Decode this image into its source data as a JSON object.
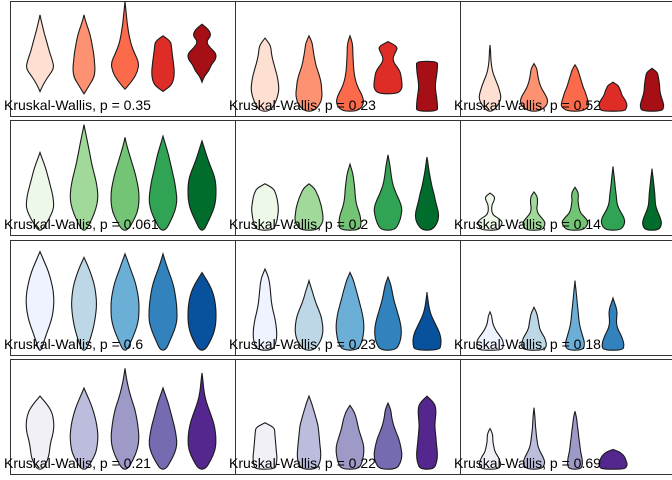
{
  "chart_data": [
    {
      "type": "violin",
      "row": 0,
      "col": 0,
      "stat_label": "Kruskal-Wallis, p = 0.35",
      "colors": [
        "#FEE0D2",
        "#FC9272",
        "#FB6A4A",
        "#DE2D26",
        "#A50F15"
      ],
      "groups": [
        {
          "ymin": 0.22,
          "ymax": 0.88,
          "w": [
            0.0,
            0.25,
            0.6,
            1.0,
            0.9,
            0.7,
            0.55,
            0.4,
            0.25,
            0.12,
            0.0
          ]
        },
        {
          "ymin": 0.2,
          "ymax": 0.88,
          "w": [
            0.0,
            0.35,
            0.7,
            0.8,
            0.75,
            0.7,
            0.6,
            0.5,
            0.35,
            0.15,
            0.0
          ]
        },
        {
          "ymin": 0.24,
          "ymax": 1.0,
          "w": [
            0.0,
            0.55,
            0.9,
            1.0,
            0.7,
            0.45,
            0.3,
            0.2,
            0.12,
            0.06,
            0.0
          ]
        },
        {
          "ymin": 0.22,
          "ymax": 0.7,
          "w": [
            0.0,
            0.55,
            0.75,
            0.8,
            0.8,
            0.75,
            0.7,
            0.65,
            0.6,
            0.55,
            0.0
          ]
        },
        {
          "ymin": 0.3,
          "ymax": 0.8,
          "w": [
            0.0,
            0.15,
            0.5,
            0.65,
            1.0,
            1.0,
            0.55,
            0.3,
            0.65,
            0.5,
            0.0
          ]
        }
      ]
    },
    {
      "type": "violin",
      "row": 0,
      "col": 1,
      "stat_label": "Kruskal-Wallis, p = 0.23",
      "colors": [
        "#FEE0D2",
        "#FC9272",
        "#FB6A4A",
        "#DE2D26",
        "#A50F15"
      ],
      "groups": [
        {
          "ymin": 0.05,
          "ymax": 0.68,
          "w": [
            0.35,
            0.7,
            0.9,
            1.0,
            0.95,
            0.85,
            0.7,
            0.55,
            0.45,
            0.4,
            0.0
          ]
        },
        {
          "ymin": 0.05,
          "ymax": 0.7,
          "w": [
            0.35,
            0.8,
            0.95,
            0.9,
            0.85,
            0.7,
            0.5,
            0.4,
            0.3,
            0.25,
            0.0
          ]
        },
        {
          "ymin": 0.05,
          "ymax": 0.7,
          "w": [
            0.6,
            1.0,
            0.9,
            0.6,
            0.4,
            0.3,
            0.25,
            0.22,
            0.2,
            0.18,
            0.0
          ]
        },
        {
          "ymin": 0.2,
          "ymax": 0.65,
          "w": [
            0.7,
            1.0,
            1.0,
            0.95,
            0.9,
            0.7,
            0.4,
            0.35,
            0.55,
            0.7,
            0.0
          ]
        },
        {
          "ymin": 0.05,
          "ymax": 0.48,
          "w": [
            0.75,
            0.75,
            0.72,
            0.68,
            0.62,
            0.6,
            0.62,
            0.68,
            0.72,
            0.75,
            0.75
          ]
        }
      ]
    },
    {
      "type": "violin",
      "row": 0,
      "col": 2,
      "stat_label": "Kruskal-Wallis, p = 0.52",
      "colors": [
        "#FEE0D2",
        "#FC9272",
        "#FB6A4A",
        "#DE2D26",
        "#A50F15"
      ],
      "groups": [
        {
          "ymin": 0.05,
          "ymax": 0.62,
          "w": [
            0.2,
            0.6,
            0.8,
            0.7,
            0.55,
            0.35,
            0.18,
            0.1,
            0.06,
            0.04,
            0.0
          ]
        },
        {
          "ymin": 0.05,
          "ymax": 0.46,
          "w": [
            0.35,
            0.85,
            1.0,
            0.9,
            0.7,
            0.5,
            0.38,
            0.3,
            0.25,
            0.2,
            0.0
          ]
        },
        {
          "ymin": 0.05,
          "ymax": 0.45,
          "w": [
            0.55,
            1.0,
            0.95,
            0.85,
            0.75,
            0.6,
            0.5,
            0.4,
            0.3,
            0.2,
            0.0
          ]
        },
        {
          "ymin": 0.05,
          "ymax": 0.3,
          "w": [
            0.8,
            0.95,
            1.0,
            0.95,
            0.85,
            0.7,
            0.6,
            0.55,
            0.45,
            0.35,
            0.0
          ]
        },
        {
          "ymin": 0.05,
          "ymax": 0.42,
          "w": [
            0.7,
            0.85,
            0.8,
            0.7,
            0.6,
            0.55,
            0.55,
            0.5,
            0.45,
            0.4,
            0.0
          ]
        }
      ]
    },
    {
      "type": "violin",
      "row": 1,
      "col": 0,
      "stat_label": "Kruskal-Wallis, p = 0.061",
      "colors": [
        "#EDF8E9",
        "#A1D99B",
        "#74C476",
        "#31A354",
        "#006D2C"
      ],
      "groups": [
        {
          "ymin": 0.05,
          "ymax": 0.72,
          "w": [
            0.15,
            0.5,
            0.8,
            1.0,
            0.95,
            0.85,
            0.7,
            0.55,
            0.4,
            0.2,
            0.0
          ]
        },
        {
          "ymin": 0.05,
          "ymax": 0.96,
          "w": [
            0.15,
            0.55,
            0.85,
            1.0,
            0.95,
            0.8,
            0.6,
            0.45,
            0.3,
            0.15,
            0.0
          ]
        },
        {
          "ymin": 0.05,
          "ymax": 0.85,
          "w": [
            0.2,
            0.6,
            0.9,
            1.0,
            1.0,
            0.9,
            0.75,
            0.55,
            0.35,
            0.15,
            0.0
          ]
        },
        {
          "ymin": 0.05,
          "ymax": 0.86,
          "w": [
            0.2,
            0.55,
            0.85,
            1.0,
            0.95,
            0.85,
            0.7,
            0.55,
            0.4,
            0.2,
            0.0
          ]
        },
        {
          "ymin": 0.05,
          "ymax": 0.82,
          "w": [
            0.15,
            0.45,
            0.75,
            0.95,
            1.0,
            1.0,
            0.9,
            0.65,
            0.4,
            0.2,
            0.0
          ]
        }
      ]
    },
    {
      "type": "violin",
      "row": 1,
      "col": 1,
      "stat_label": "Kruskal-Wallis, p = 0.2",
      "colors": [
        "#EDF8E9",
        "#A1D99B",
        "#74C476",
        "#31A354",
        "#006D2C"
      ],
      "groups": [
        {
          "ymin": 0.05,
          "ymax": 0.45,
          "w": [
            0.55,
            0.75,
            0.85,
            0.9,
            0.95,
            0.95,
            0.9,
            0.85,
            0.75,
            0.6,
            0.0
          ]
        },
        {
          "ymin": 0.05,
          "ymax": 0.45,
          "w": [
            0.55,
            0.85,
            1.0,
            1.0,
            0.95,
            0.9,
            0.8,
            0.7,
            0.55,
            0.4,
            0.0
          ]
        },
        {
          "ymin": 0.05,
          "ymax": 0.62,
          "w": [
            0.7,
            0.8,
            0.75,
            0.6,
            0.45,
            0.38,
            0.35,
            0.3,
            0.25,
            0.15,
            0.0
          ]
        },
        {
          "ymin": 0.05,
          "ymax": 0.7,
          "w": [
            0.5,
            0.8,
            0.95,
            1.0,
            0.8,
            0.55,
            0.35,
            0.25,
            0.18,
            0.1,
            0.0
          ]
        },
        {
          "ymin": 0.05,
          "ymax": 0.68,
          "w": [
            0.35,
            0.75,
            0.85,
            0.75,
            0.6,
            0.5,
            0.35,
            0.25,
            0.15,
            0.08,
            0.0
          ]
        }
      ]
    },
    {
      "type": "violin",
      "row": 1,
      "col": 2,
      "stat_label": "Kruskal-Wallis, p = 0.14",
      "colors": [
        "#EDF8E9",
        "#A1D99B",
        "#74C476",
        "#31A354",
        "#006D2C"
      ],
      "groups": [
        {
          "ymin": 0.05,
          "ymax": 0.37,
          "w": [
            0.6,
            0.75,
            0.9,
            0.7,
            0.25,
            0.12,
            0.12,
            0.15,
            0.3,
            0.35,
            0.0
          ]
        },
        {
          "ymin": 0.05,
          "ymax": 0.38,
          "w": [
            0.55,
            0.75,
            0.8,
            0.6,
            0.35,
            0.22,
            0.2,
            0.25,
            0.25,
            0.2,
            0.0
          ]
        },
        {
          "ymin": 0.05,
          "ymax": 0.42,
          "w": [
            0.55,
            0.85,
            0.95,
            0.7,
            0.4,
            0.3,
            0.25,
            0.2,
            0.25,
            0.2,
            0.0
          ]
        },
        {
          "ymin": 0.05,
          "ymax": 0.6,
          "w": [
            0.55,
            0.85,
            0.8,
            0.5,
            0.3,
            0.25,
            0.2,
            0.15,
            0.1,
            0.05,
            0.0
          ]
        },
        {
          "ymin": 0.05,
          "ymax": 0.58,
          "w": [
            0.5,
            0.7,
            0.6,
            0.4,
            0.25,
            0.22,
            0.2,
            0.15,
            0.1,
            0.05,
            0.0
          ]
        }
      ]
    },
    {
      "type": "violin",
      "row": 2,
      "col": 0,
      "stat_label": "Kruskal-Wallis, p = 0.6",
      "colors": [
        "#EFF3FF",
        "#BDD7E7",
        "#6BAED6",
        "#3182BD",
        "#08519C"
      ],
      "groups": [
        {
          "ymin": 0.05,
          "ymax": 0.9,
          "w": [
            0.1,
            0.3,
            0.55,
            0.8,
            0.95,
            1.0,
            0.95,
            0.8,
            0.6,
            0.3,
            0.0
          ]
        },
        {
          "ymin": 0.05,
          "ymax": 0.85,
          "w": [
            0.15,
            0.4,
            0.6,
            0.75,
            0.85,
            0.9,
            0.85,
            0.75,
            0.55,
            0.3,
            0.0
          ]
        },
        {
          "ymin": 0.05,
          "ymax": 0.88,
          "w": [
            0.15,
            0.45,
            0.75,
            0.95,
            1.0,
            1.0,
            0.9,
            0.75,
            0.5,
            0.25,
            0.0
          ]
        },
        {
          "ymin": 0.05,
          "ymax": 0.88,
          "w": [
            0.2,
            0.5,
            0.8,
            1.0,
            1.0,
            0.95,
            0.85,
            0.7,
            0.45,
            0.2,
            0.0
          ]
        },
        {
          "ymin": 0.05,
          "ymax": 0.72,
          "w": [
            0.2,
            0.55,
            0.8,
            0.95,
            1.0,
            1.0,
            0.95,
            0.85,
            0.65,
            0.35,
            0.0
          ]
        }
      ]
    },
    {
      "type": "violin",
      "row": 2,
      "col": 1,
      "stat_label": "Kruskal-Wallis, p = 0.23",
      "colors": [
        "#EFF3FF",
        "#BDD7E7",
        "#6BAED6",
        "#3182BD",
        "#08519C"
      ],
      "groups": [
        {
          "ymin": 0.05,
          "ymax": 0.75,
          "w": [
            0.55,
            0.8,
            0.85,
            0.8,
            0.7,
            0.55,
            0.45,
            0.4,
            0.35,
            0.25,
            0.0
          ]
        },
        {
          "ymin": 0.05,
          "ymax": 0.65,
          "w": [
            0.35,
            0.75,
            0.95,
            1.0,
            0.95,
            0.85,
            0.65,
            0.45,
            0.3,
            0.15,
            0.0
          ]
        },
        {
          "ymin": 0.05,
          "ymax": 0.72,
          "w": [
            0.55,
            0.85,
            0.95,
            1.0,
            0.95,
            0.85,
            0.7,
            0.55,
            0.4,
            0.25,
            0.0
          ]
        },
        {
          "ymin": 0.05,
          "ymax": 0.68,
          "w": [
            0.55,
            0.85,
            0.95,
            0.95,
            0.85,
            0.7,
            0.55,
            0.4,
            0.3,
            0.2,
            0.0
          ]
        },
        {
          "ymin": 0.05,
          "ymax": 0.55,
          "w": [
            0.9,
            1.0,
            1.0,
            0.9,
            0.7,
            0.5,
            0.3,
            0.18,
            0.1,
            0.05,
            0.0
          ]
        }
      ]
    },
    {
      "type": "violin",
      "row": 2,
      "col": 2,
      "stat_label": "Kruskal-Wallis, p = 0.18",
      "colors": [
        "#EFF3FF",
        "#BDD7E7",
        "#6BAED6",
        "#3182BD"
      ],
      "groups": [
        {
          "ymin": 0.05,
          "ymax": 0.38,
          "w": [
            0.85,
            0.95,
            0.95,
            0.85,
            0.65,
            0.45,
            0.3,
            0.2,
            0.15,
            0.12,
            0.0
          ]
        },
        {
          "ymin": 0.05,
          "ymax": 0.42,
          "w": [
            0.7,
            0.9,
            0.85,
            0.75,
            0.55,
            0.4,
            0.35,
            0.3,
            0.25,
            0.15,
            0.0
          ]
        },
        {
          "ymin": 0.05,
          "ymax": 0.65,
          "w": [
            0.6,
            0.7,
            0.55,
            0.4,
            0.3,
            0.25,
            0.2,
            0.15,
            0.1,
            0.05,
            0.0
          ]
        },
        {
          "ymin": 0.05,
          "ymax": 0.5,
          "w": [
            0.7,
            0.8,
            0.7,
            0.55,
            0.35,
            0.25,
            0.25,
            0.3,
            0.25,
            0.12,
            0.0
          ]
        }
      ]
    },
    {
      "type": "violin",
      "row": 3,
      "col": 0,
      "stat_label": "Kruskal-Wallis, p = 0.21",
      "colors": [
        "#F2F0F7",
        "#BCBDDC",
        "#9E9AC8",
        "#756BB1",
        "#54278F"
      ],
      "groups": [
        {
          "ymin": 0.05,
          "ymax": 0.68,
          "w": [
            0.2,
            0.5,
            0.65,
            0.7,
            0.8,
            0.95,
            1.0,
            0.95,
            0.8,
            0.45,
            0.0
          ]
        },
        {
          "ymin": 0.05,
          "ymax": 0.75,
          "w": [
            0.2,
            0.55,
            0.85,
            0.95,
            1.0,
            0.95,
            0.85,
            0.7,
            0.5,
            0.25,
            0.0
          ]
        },
        {
          "ymin": 0.05,
          "ymax": 0.92,
          "w": [
            0.2,
            0.6,
            0.9,
            1.0,
            0.95,
            0.85,
            0.7,
            0.45,
            0.25,
            0.1,
            0.0
          ]
        },
        {
          "ymin": 0.05,
          "ymax": 0.75,
          "w": [
            0.2,
            0.55,
            0.85,
            1.0,
            0.95,
            0.85,
            0.7,
            0.55,
            0.4,
            0.2,
            0.0
          ]
        },
        {
          "ymin": 0.05,
          "ymax": 0.88,
          "w": [
            0.25,
            0.65,
            0.95,
            1.0,
            0.95,
            0.8,
            0.55,
            0.3,
            0.15,
            0.08,
            0.0
          ]
        }
      ]
    },
    {
      "type": "violin",
      "row": 3,
      "col": 1,
      "stat_label": "Kruskal-Wallis, p = 0.22",
      "colors": [
        "#F2F0F7",
        "#BCBDDC",
        "#9E9AC8",
        "#756BB1",
        "#54278F"
      ],
      "groups": [
        {
          "ymin": 0.05,
          "ymax": 0.45,
          "w": [
            0.7,
            0.8,
            0.85,
            0.85,
            0.8,
            0.78,
            0.75,
            0.72,
            0.7,
            0.65,
            0.0
          ]
        },
        {
          "ymin": 0.05,
          "ymax": 0.68,
          "w": [
            0.55,
            0.8,
            0.85,
            0.8,
            0.75,
            0.7,
            0.65,
            0.5,
            0.35,
            0.2,
            0.0
          ]
        },
        {
          "ymin": 0.05,
          "ymax": 0.6,
          "w": [
            0.6,
            0.85,
            0.95,
            1.0,
            0.95,
            0.8,
            0.65,
            0.55,
            0.45,
            0.3,
            0.0
          ]
        },
        {
          "ymin": 0.05,
          "ymax": 0.62,
          "w": [
            0.6,
            0.9,
            1.0,
            0.95,
            0.85,
            0.7,
            0.5,
            0.35,
            0.25,
            0.2,
            0.0
          ]
        },
        {
          "ymin": 0.05,
          "ymax": 0.68,
          "w": [
            0.5,
            0.7,
            0.75,
            0.7,
            0.65,
            0.6,
            0.55,
            0.6,
            0.65,
            0.55,
            0.0
          ]
        }
      ]
    },
    {
      "type": "violin",
      "row": 3,
      "col": 2,
      "stat_label": "Kruskal-Wallis, p = 0.69",
      "colors": [
        "#F2F0F7",
        "#BCBDDC",
        "#9E9AC8",
        "#54278F"
      ],
      "groups": [
        {
          "ymin": 0.05,
          "ymax": 0.4,
          "w": [
            0.55,
            0.8,
            0.7,
            0.6,
            0.4,
            0.3,
            0.25,
            0.2,
            0.2,
            0.15,
            0.0
          ]
        },
        {
          "ymin": 0.05,
          "ymax": 0.58,
          "w": [
            0.55,
            0.8,
            0.65,
            0.4,
            0.25,
            0.2,
            0.15,
            0.1,
            0.08,
            0.05,
            0.0
          ]
        },
        {
          "ymin": 0.05,
          "ymax": 0.55,
          "w": [
            0.45,
            0.55,
            0.5,
            0.4,
            0.35,
            0.3,
            0.25,
            0.2,
            0.15,
            0.1,
            0.0
          ]
        },
        {
          "ymin": 0.05,
          "ymax": 0.22,
          "w": [
            0.75,
            0.95,
            1.0,
            1.0,
            0.95,
            0.9,
            0.85,
            0.75,
            0.6,
            0.4,
            0.0
          ]
        }
      ]
    }
  ]
}
